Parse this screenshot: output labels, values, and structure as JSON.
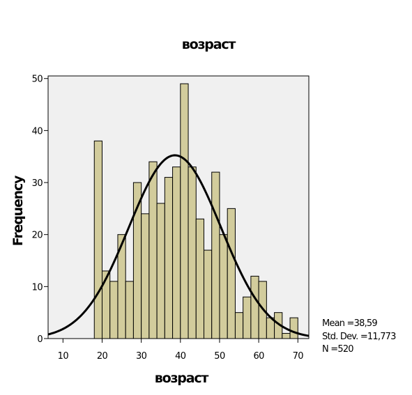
{
  "chart_data": {
    "type": "bar",
    "title": "возраст",
    "xlabel": "возраст",
    "ylabel": "Frequency",
    "xlim": [
      6.2,
      72.8
    ],
    "ylim": [
      0,
      50.5
    ],
    "x_ticks": [
      10,
      20,
      30,
      40,
      50,
      60,
      70
    ],
    "y_ticks": [
      0,
      10,
      20,
      30,
      40,
      50
    ],
    "grid": false,
    "bin_width": 2,
    "bins": [
      {
        "x0": 18,
        "x1": 20,
        "value": 38
      },
      {
        "x0": 20,
        "x1": 22,
        "value": 13
      },
      {
        "x0": 22,
        "x1": 24,
        "value": 11
      },
      {
        "x0": 24,
        "x1": 26,
        "value": 20
      },
      {
        "x0": 26,
        "x1": 28,
        "value": 11
      },
      {
        "x0": 28,
        "x1": 30,
        "value": 30
      },
      {
        "x0": 30,
        "x1": 32,
        "value": 24
      },
      {
        "x0": 32,
        "x1": 34,
        "value": 34
      },
      {
        "x0": 34,
        "x1": 36,
        "value": 26
      },
      {
        "x0": 36,
        "x1": 38,
        "value": 31
      },
      {
        "x0": 38,
        "x1": 40,
        "value": 33
      },
      {
        "x0": 40,
        "x1": 42,
        "value": 49
      },
      {
        "x0": 42,
        "x1": 44,
        "value": 33
      },
      {
        "x0": 44,
        "x1": 46,
        "value": 23
      },
      {
        "x0": 46,
        "x1": 48,
        "value": 17
      },
      {
        "x0": 48,
        "x1": 50,
        "value": 32
      },
      {
        "x0": 50,
        "x1": 52,
        "value": 20
      },
      {
        "x0": 52,
        "x1": 54,
        "value": 25
      },
      {
        "x0": 54,
        "x1": 56,
        "value": 5
      },
      {
        "x0": 56,
        "x1": 58,
        "value": 8
      },
      {
        "x0": 58,
        "x1": 60,
        "value": 12
      },
      {
        "x0": 60,
        "x1": 62,
        "value": 11
      },
      {
        "x0": 62,
        "x1": 64,
        "value": 4
      },
      {
        "x0": 64,
        "x1": 66,
        "value": 5
      },
      {
        "x0": 66,
        "x1": 68,
        "value": 1
      },
      {
        "x0": 68,
        "x1": 70,
        "value": 4
      }
    ],
    "normal_curve": {
      "mean": 38.59,
      "std_dev": 11.773,
      "n": 520
    },
    "colors": {
      "bar_fill": "#d2cc9c",
      "bar_stroke": "#000000",
      "plot_background": "#f0f0f0",
      "curve": "#000000"
    },
    "stats_text": {
      "mean": "Mean =38,59",
      "std_dev": "Std. Dev. =11,773",
      "n": "N =520"
    }
  }
}
